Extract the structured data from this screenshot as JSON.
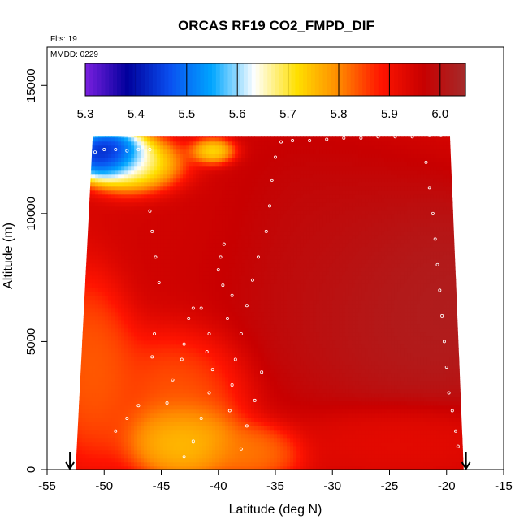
{
  "chart_data": {
    "type": "heatmap",
    "title": "ORCAS RF19 CO2_FMPD_DIF",
    "flights_text": "Flts: 19",
    "mmdd_text": "MMDD: 0229",
    "xlabel": "Latitude (deg N)",
    "ylabel": "Altitude (m)",
    "xlim": [
      -55,
      -15
    ],
    "ylim": [
      0,
      16500
    ],
    "x_ticks": [
      -55,
      -50,
      -45,
      -40,
      -35,
      -30,
      -25,
      -20,
      -15
    ],
    "y_ticks": [
      0,
      5000,
      10000,
      15000
    ],
    "colorbar": {
      "range": [
        5.3,
        6.05
      ],
      "ticks": [
        5.3,
        5.4,
        5.5,
        5.6,
        5.7,
        5.8,
        5.9,
        6.0
      ],
      "stops": [
        "#7b1fe0",
        "#00009c",
        "#0a4ff0",
        "#00a6ff",
        "#ffffff",
        "#ffe000",
        "#ff8a00",
        "#ff1400",
        "#c80000",
        "#a52a2a"
      ]
    },
    "arrows_lat": [
      -53.0,
      -18.3
    ],
    "domain": {
      "bottom_left_lat": -52.5,
      "bottom_right_lat": -18.5,
      "top_left_lat": -51.0,
      "top_right_lat": -19.7,
      "top_alt": 13000
    },
    "features": [
      {
        "lat": -22,
        "alt": 6500,
        "value": 6.04,
        "sx": 9,
        "sa": 3000
      },
      {
        "lat": -33,
        "alt": 8000,
        "value": 5.99,
        "sx": 9,
        "sa": 3500
      },
      {
        "lat": -42,
        "alt": 9000,
        "value": 5.95,
        "sx": 5,
        "sa": 3000
      },
      {
        "lat": -51,
        "alt": 4000,
        "value": 5.82,
        "sx": 3,
        "sa": 2500
      },
      {
        "lat": -43,
        "alt": 3500,
        "value": 5.82,
        "sx": 4,
        "sa": 1800
      },
      {
        "lat": -43,
        "alt": 1200,
        "value": 5.72,
        "sx": 3.5,
        "sa": 1100
      },
      {
        "lat": -37,
        "alt": 700,
        "value": 5.8,
        "sx": 3,
        "sa": 800
      },
      {
        "lat": -49.5,
        "alt": 12300,
        "value": 5.32,
        "sx": 2.5,
        "sa": 700
      },
      {
        "lat": -46.5,
        "alt": 11800,
        "value": 5.6,
        "sx": 3,
        "sa": 800
      },
      {
        "lat": -40.5,
        "alt": 12400,
        "value": 5.62,
        "sx": 1.5,
        "sa": 400
      },
      {
        "lat": -24,
        "alt": 1300,
        "value": 5.92,
        "sx": 6,
        "sa": 900
      }
    ],
    "base_value": 5.94,
    "flight_track": [
      [
        -50.8,
        12400
      ],
      [
        -50.0,
        12500
      ],
      [
        -49.0,
        12500
      ],
      [
        -48.0,
        12450
      ],
      [
        -47.0,
        12500
      ],
      [
        -46.0,
        12500
      ],
      [
        -34.5,
        12800
      ],
      [
        -33.5,
        12850
      ],
      [
        -32.0,
        12850
      ],
      [
        -30.5,
        12900
      ],
      [
        -29.0,
        12950
      ],
      [
        -27.5,
        12950
      ],
      [
        -26.0,
        13000
      ],
      [
        -24.5,
        13000
      ],
      [
        -23.0,
        13000
      ],
      [
        -21.5,
        13050
      ],
      [
        -20.5,
        13050
      ],
      [
        -35.0,
        12200
      ],
      [
        -35.3,
        11300
      ],
      [
        -35.5,
        10300
      ],
      [
        -35.8,
        9300
      ],
      [
        -36.5,
        8300
      ],
      [
        -37.0,
        7400
      ],
      [
        -37.5,
        6400
      ],
      [
        -38.0,
        5300
      ],
      [
        -38.5,
        4300
      ],
      [
        -38.8,
        3300
      ],
      [
        -39.0,
        2300
      ],
      [
        -39.5,
        8800
      ],
      [
        -39.8,
        8300
      ],
      [
        -40.0,
        7800
      ],
      [
        -39.6,
        7200
      ],
      [
        -38.8,
        6800
      ],
      [
        -39.2,
        5900
      ],
      [
        -40.8,
        5300
      ],
      [
        -41.0,
        4600
      ],
      [
        -40.5,
        3900
      ],
      [
        -40.8,
        3000
      ],
      [
        -41.5,
        2000
      ],
      [
        -42.2,
        1100
      ],
      [
        -43.0,
        500
      ],
      [
        -41.5,
        6300
      ],
      [
        -42.2,
        6300
      ],
      [
        -42.6,
        5900
      ],
      [
        -43.0,
        4900
      ],
      [
        -43.2,
        4300
      ],
      [
        -44.0,
        3500
      ],
      [
        -44.5,
        2600
      ],
      [
        -46.0,
        10100
      ],
      [
        -45.8,
        9300
      ],
      [
        -45.5,
        8300
      ],
      [
        -45.2,
        7300
      ],
      [
        -45.6,
        5300
      ],
      [
        -45.8,
        4400
      ],
      [
        -47.0,
        2500
      ],
      [
        -48.0,
        2000
      ],
      [
        -49.0,
        1500
      ],
      [
        -36.2,
        3800
      ],
      [
        -36.8,
        2700
      ],
      [
        -37.5,
        1700
      ],
      [
        -38.0,
        800
      ],
      [
        -21.2,
        10000
      ],
      [
        -21.0,
        9000
      ],
      [
        -20.8,
        8000
      ],
      [
        -20.6,
        7000
      ],
      [
        -20.4,
        6000
      ],
      [
        -20.2,
        5000
      ],
      [
        -20.0,
        4000
      ],
      [
        -19.8,
        3000
      ],
      [
        -19.5,
        2300
      ],
      [
        -19.2,
        1500
      ],
      [
        -19.0,
        900
      ],
      [
        -21.8,
        12000
      ],
      [
        -21.5,
        11000
      ]
    ]
  }
}
